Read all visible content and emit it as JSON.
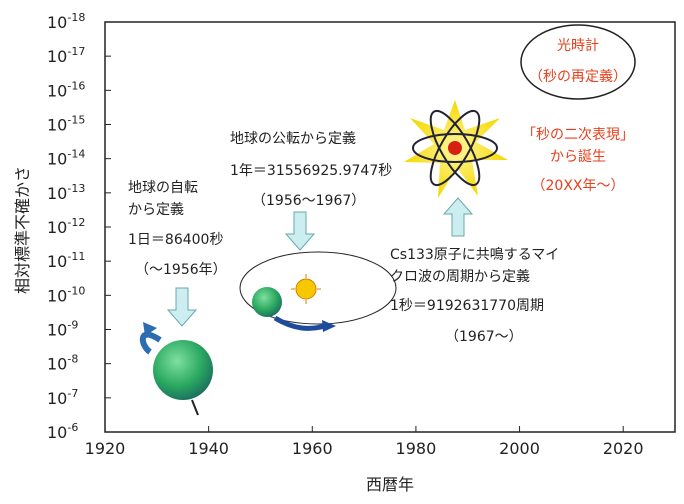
{
  "chart_data": {
    "type": "annotated-timeline",
    "x_label": "西暦年",
    "y_label": "相対標準不確かさ",
    "xlim": [
      1920,
      2030
    ],
    "xticks": [
      1920,
      1940,
      1960,
      1980,
      2000,
      2020
    ],
    "yscale": "log",
    "ylim": [
      1e-06,
      1e-18
    ],
    "yticks": [
      {
        "value": 1e-06,
        "label": "10-6"
      },
      {
        "value": 1e-07,
        "label": "10-7"
      },
      {
        "value": 1e-08,
        "label": "10-8"
      },
      {
        "value": 1e-09,
        "label": "10-9"
      },
      {
        "value": 1e-10,
        "label": "10-10"
      },
      {
        "value": 1e-11,
        "label": "10-11"
      },
      {
        "value": 1e-12,
        "label": "10-12"
      },
      {
        "value": 1e-13,
        "label": "10-13"
      },
      {
        "value": 1e-14,
        "label": "10-14"
      },
      {
        "value": 1e-15,
        "label": "10-15"
      },
      {
        "value": 1e-16,
        "label": "10-16"
      },
      {
        "value": 1e-17,
        "label": "10-17"
      },
      {
        "value": 1e-18,
        "label": "10-18"
      }
    ],
    "annotations": [
      "地球の自転",
      "から定義",
      "1日＝86400秒",
      "（～1956年）",
      "地球の公転から定義",
      "1年＝31556925.9747秒",
      "（1956～1967）",
      "Cs133原子に共鳴するマイ",
      "クロ波の周期から定義",
      "1秒＝9192631770周期",
      "（1967～）",
      "光時計",
      "（秒の再定義）",
      "「秒の二次表現」",
      "から誕生",
      "（20XX年～）"
    ]
  }
}
